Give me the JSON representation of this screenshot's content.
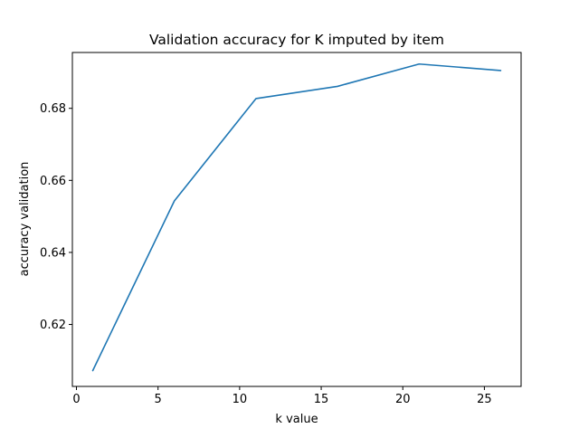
{
  "chart_data": {
    "type": "line",
    "title": "Validation accuracy for K imputed by item",
    "xlabel": "k value",
    "ylabel": "accuracy validation",
    "xlim": [
      -0.25,
      27.25
    ],
    "ylim": [
      0.6028,
      0.6955
    ],
    "x_ticks": [
      0,
      5,
      10,
      15,
      20,
      25
    ],
    "y_ticks": [
      0.62,
      0.64,
      0.66,
      0.68
    ],
    "x_tick_labels": [
      "0",
      "5",
      "10",
      "15",
      "20",
      "25"
    ],
    "y_tick_labels": [
      "0.62",
      "0.64",
      "0.66",
      "0.68"
    ],
    "grid": false,
    "legend": "none",
    "series": [
      {
        "color": "#1f77b4",
        "x": [
          1,
          6,
          11,
          16,
          21,
          26
        ],
        "y": [
          0.6072,
          0.6543,
          0.6827,
          0.6861,
          0.6923,
          0.6905
        ]
      }
    ]
  }
}
